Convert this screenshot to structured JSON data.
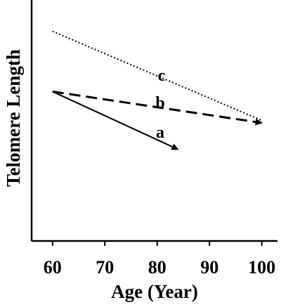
{
  "chart_data": {
    "type": "line",
    "title": "",
    "xlabel": "Age (Year)",
    "ylabel": "Telomere Length",
    "xlim": [
      56,
      103
    ],
    "ylim": [
      0,
      100
    ],
    "x_ticks": [
      60,
      70,
      80,
      90,
      100
    ],
    "y_ticks": [],
    "grid": false,
    "legend": "none",
    "series": [
      {
        "name": "a",
        "style": "solid",
        "arrow_end": true,
        "points": [
          [
            60,
            62
          ],
          [
            84,
            38
          ]
        ]
      },
      {
        "name": "b",
        "style": "dashed",
        "arrow_end": true,
        "points": [
          [
            60,
            62
          ],
          [
            100,
            49
          ]
        ]
      },
      {
        "name": "c",
        "style": "dotted",
        "arrow_end": false,
        "points": [
          [
            60,
            87
          ],
          [
            100,
            50
          ]
        ]
      }
    ]
  },
  "colors": {
    "line": "#000000",
    "background": "#ffffff"
  }
}
